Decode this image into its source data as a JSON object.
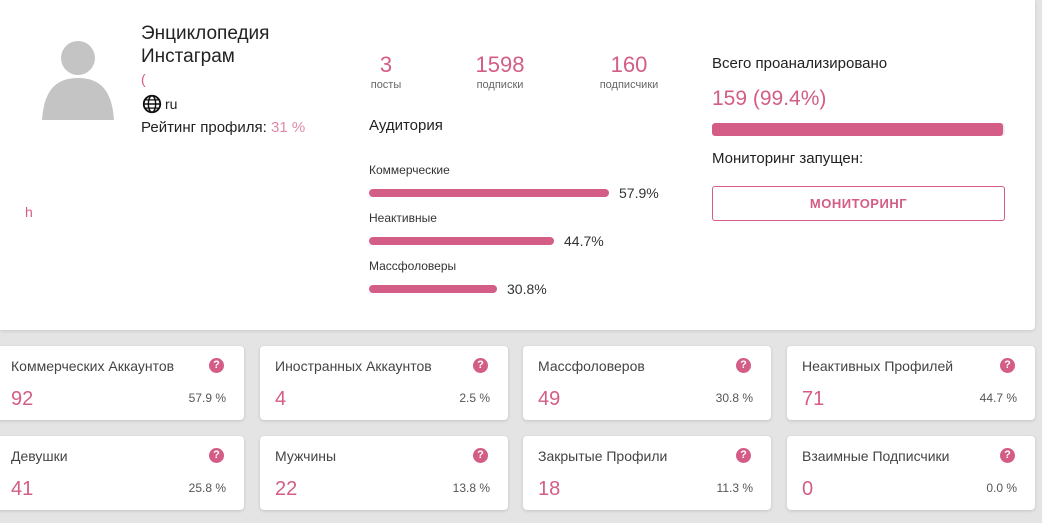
{
  "profile": {
    "name": "Энциклопедия Инстаграм",
    "paren": "(",
    "language": "ru",
    "rating_label": "Рейтинг профиля:",
    "rating_value": "31 %",
    "link_text": "h"
  },
  "stats": [
    {
      "value": "3",
      "label": "посты"
    },
    {
      "value": "1598",
      "label": "подписки"
    },
    {
      "value": "160",
      "label": "подписчики"
    }
  ],
  "audience": {
    "title": "Аудитория",
    "items": [
      {
        "label": "Коммерческие",
        "percent": "57.9%",
        "fraction": 0.579
      },
      {
        "label": "Неактивные",
        "percent": "44.7%",
        "fraction": 0.447
      },
      {
        "label": "Массфоловеры",
        "percent": "30.8%",
        "fraction": 0.308
      }
    ]
  },
  "analysis": {
    "title": "Всего проанализировано",
    "value": "159 (99.4%)",
    "progress": 0.994,
    "monitoring_status": "Мониторинг запущен:",
    "monitoring_button": "МОНИТОРИНГ"
  },
  "cards": [
    {
      "label": "Коммерческих Аккаунтов",
      "value": "92",
      "percent": "57.9 %"
    },
    {
      "label": "Иностранных Аккаунтов",
      "value": "4",
      "percent": "2.5 %"
    },
    {
      "label": "Массфоловеров",
      "value": "49",
      "percent": "30.8 %"
    },
    {
      "label": "Неактивных Профилей",
      "value": "71",
      "percent": "44.7 %"
    },
    {
      "label": "Девушки",
      "value": "41",
      "percent": "25.8 %"
    },
    {
      "label": "Мужчины",
      "value": "22",
      "percent": "13.8 %"
    },
    {
      "label": "Закрытые Профили",
      "value": "18",
      "percent": "11.3 %"
    },
    {
      "label": "Взаимные Подписчики",
      "value": "0",
      "percent": "0.0 %"
    }
  ],
  "help_glyph": "?",
  "colors": {
    "accent": "#d35d86",
    "background": "#e4e4e4",
    "card": "#ffffff"
  }
}
